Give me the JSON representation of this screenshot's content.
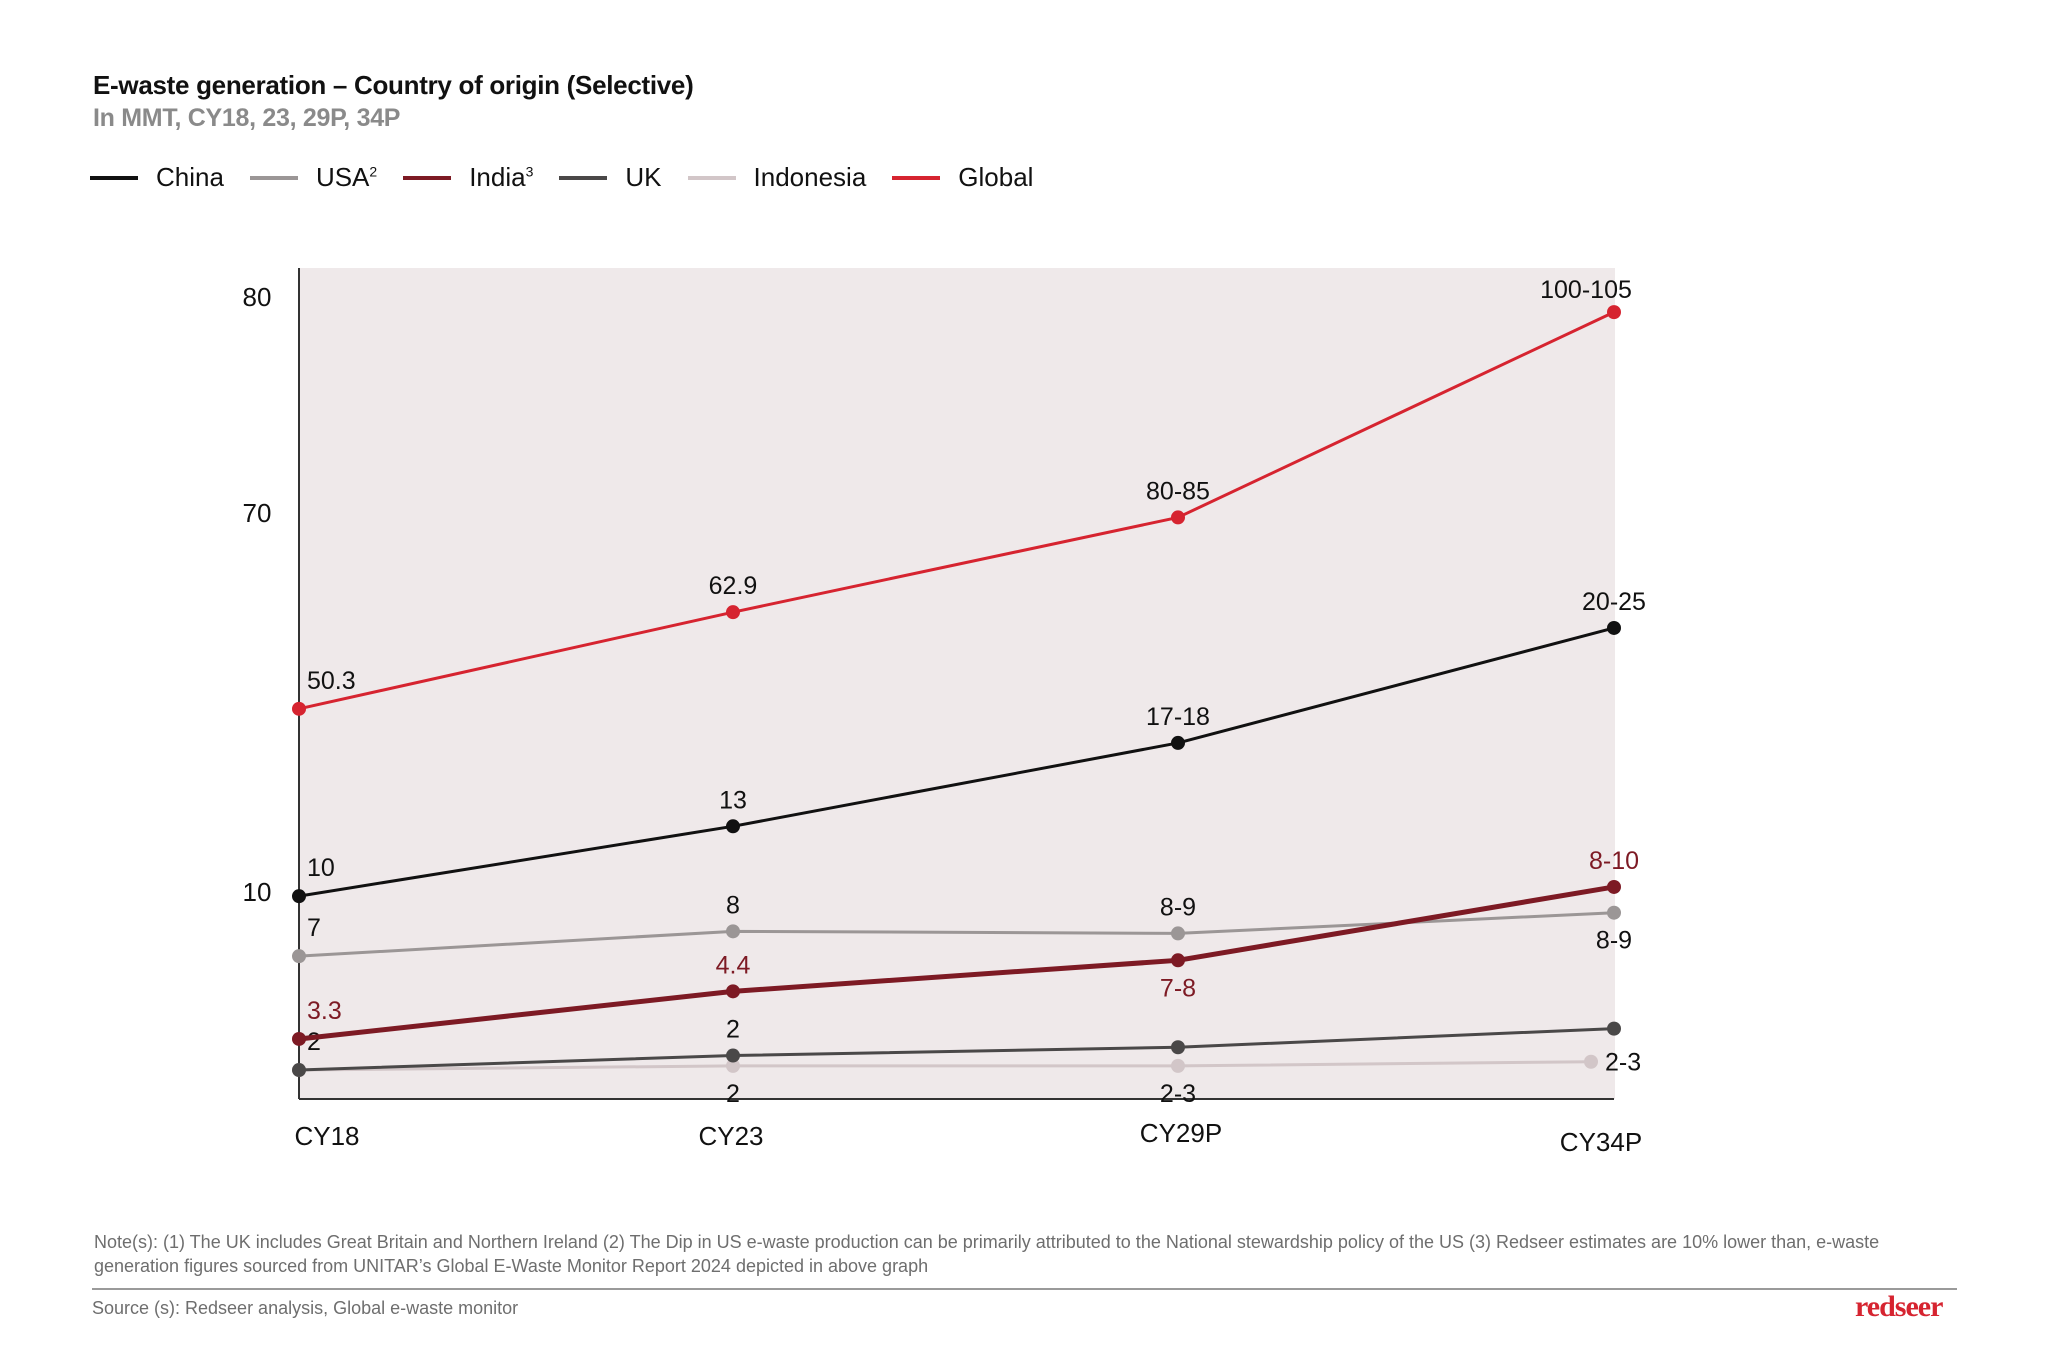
{
  "header": {
    "title": "E-waste generation – Country of origin (Selective)",
    "subtitle": "In MMT, CY18, 23, 29P, 34P"
  },
  "legend": [
    {
      "label": "China",
      "sup": "",
      "color": "#111111"
    },
    {
      "label": "USA",
      "sup": "2",
      "color": "#9b9696"
    },
    {
      "label": "India",
      "sup": "3",
      "color": "#7d1a24"
    },
    {
      "label": "UK",
      "sup": "",
      "color": "#4a4848"
    },
    {
      "label": "Indonesia",
      "sup": "",
      "color": "#d2c6c8"
    },
    {
      "label": "Global",
      "sup": "",
      "color": "#d62430"
    }
  ],
  "chart_data": {
    "type": "line",
    "title": "E-waste generation – Country of origin (Selective)",
    "subtitle": "In MMT, CY18, 23, 29P, 34P",
    "xlabel": "",
    "ylabel": "MMT",
    "categories": [
      "CY18",
      "CY23",
      "CY29P",
      "CY34P"
    ],
    "y_ticks": [
      "80",
      "70",
      "10"
    ],
    "y_axis_note": "Schematic (broken) axis; tick labels 10, 70, 80 only",
    "plot_background": "#efe9ea",
    "grid": false,
    "legend_position": "top-left",
    "series": [
      {
        "name": "Global",
        "color": "#d62430",
        "label_color": "#111111",
        "labels": [
          "50.3",
          "62.9",
          "80-85",
          "100-105"
        ],
        "axis_values": [
          39,
          54.3,
          69.3,
          79.3
        ],
        "label_pos": [
          "above-right",
          "above",
          "above",
          "above-left"
        ]
      },
      {
        "name": "China",
        "color": "#111111",
        "label_color": "#111111",
        "labels": [
          "10",
          "13",
          "17-18",
          "20-25"
        ],
        "axis_values": [
          9.8,
          20.4,
          33.6,
          51.8
        ],
        "label_pos": [
          "above-right",
          "above",
          "above",
          "above"
        ]
      },
      {
        "name": "USA",
        "color": "#9b9696",
        "label_color": "#111111",
        "labels": [
          "7",
          "8",
          "8-9",
          "8-9"
        ],
        "axis_values": [
          6.9,
          8.1,
          8.0,
          9.0
        ],
        "label_pos": [
          "above-right",
          "above",
          "above",
          "below"
        ]
      },
      {
        "name": "India",
        "color": "#7d1a24",
        "label_color": "#7d1a24",
        "labels": [
          "3.3",
          "4.4",
          "7-8",
          "8-10"
        ],
        "axis_values": [
          2.9,
          5.2,
          6.7,
          10.8
        ],
        "label_pos": [
          "above-right",
          "above",
          "below",
          "above"
        ]
      },
      {
        "name": "UK",
        "color": "#4a4848",
        "label_color": "#111111",
        "labels": [
          "2",
          "2",
          "",
          ""
        ],
        "axis_values": [
          1.4,
          2.1,
          2.5,
          3.4
        ],
        "label_pos": [
          "above-right",
          "above",
          "none",
          "none"
        ]
      },
      {
        "name": "Indonesia",
        "color": "#d2c6c8",
        "label_color": "#111111",
        "labels": [
          "",
          "2",
          "2-3",
          "2-3"
        ],
        "axis_values": [
          1.4,
          1.6,
          1.6,
          1.8
        ],
        "label_pos": [
          "none",
          "below",
          "below",
          "right"
        ]
      }
    ]
  },
  "footer": {
    "note": "Note(s): (1) The UK includes Great Britain and Northern Ireland (2) The Dip in US e-waste production can be primarily attributed to the National stewardship policy of the US (3) Redseer estimates are 10% lower than, e-waste generation figures sourced from UNITAR’s Global E-Waste Monitor Report 2024 depicted in above graph",
    "source": "Source (s): Redseer analysis, Global e-waste monitor",
    "logo": "redseer"
  }
}
